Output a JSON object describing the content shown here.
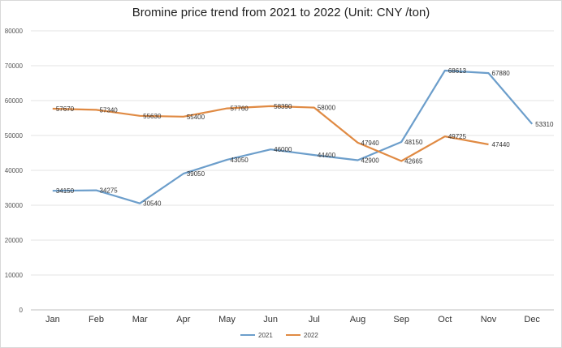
{
  "chart_data": {
    "type": "line",
    "title": "Bromine price trend from 2021 to 2022 (Unit: CNY /ton)",
    "categories": [
      "Jan",
      "Feb",
      "Mar",
      "Apr",
      "May",
      "Jun",
      "Jul",
      "Aug",
      "Sep",
      "Oct",
      "Nov",
      "Dec"
    ],
    "ylim": [
      0,
      80000
    ],
    "yticks": [
      0,
      10000,
      20000,
      30000,
      40000,
      50000,
      60000,
      70000,
      80000
    ],
    "grid": true,
    "legend_position": "bottom",
    "series": [
      {
        "name": "2021",
        "color": "#6c9ecb",
        "values": [
          34150,
          34275,
          30540,
          39050,
          43050,
          46000,
          44400,
          42900,
          48150,
          68613,
          67880,
          53310
        ]
      },
      {
        "name": "2022",
        "color": "#e08a43",
        "values": [
          57670,
          57340,
          55630,
          55400,
          57760,
          58390,
          58000,
          47940,
          42665,
          49725,
          47440,
          null
        ]
      }
    ]
  }
}
